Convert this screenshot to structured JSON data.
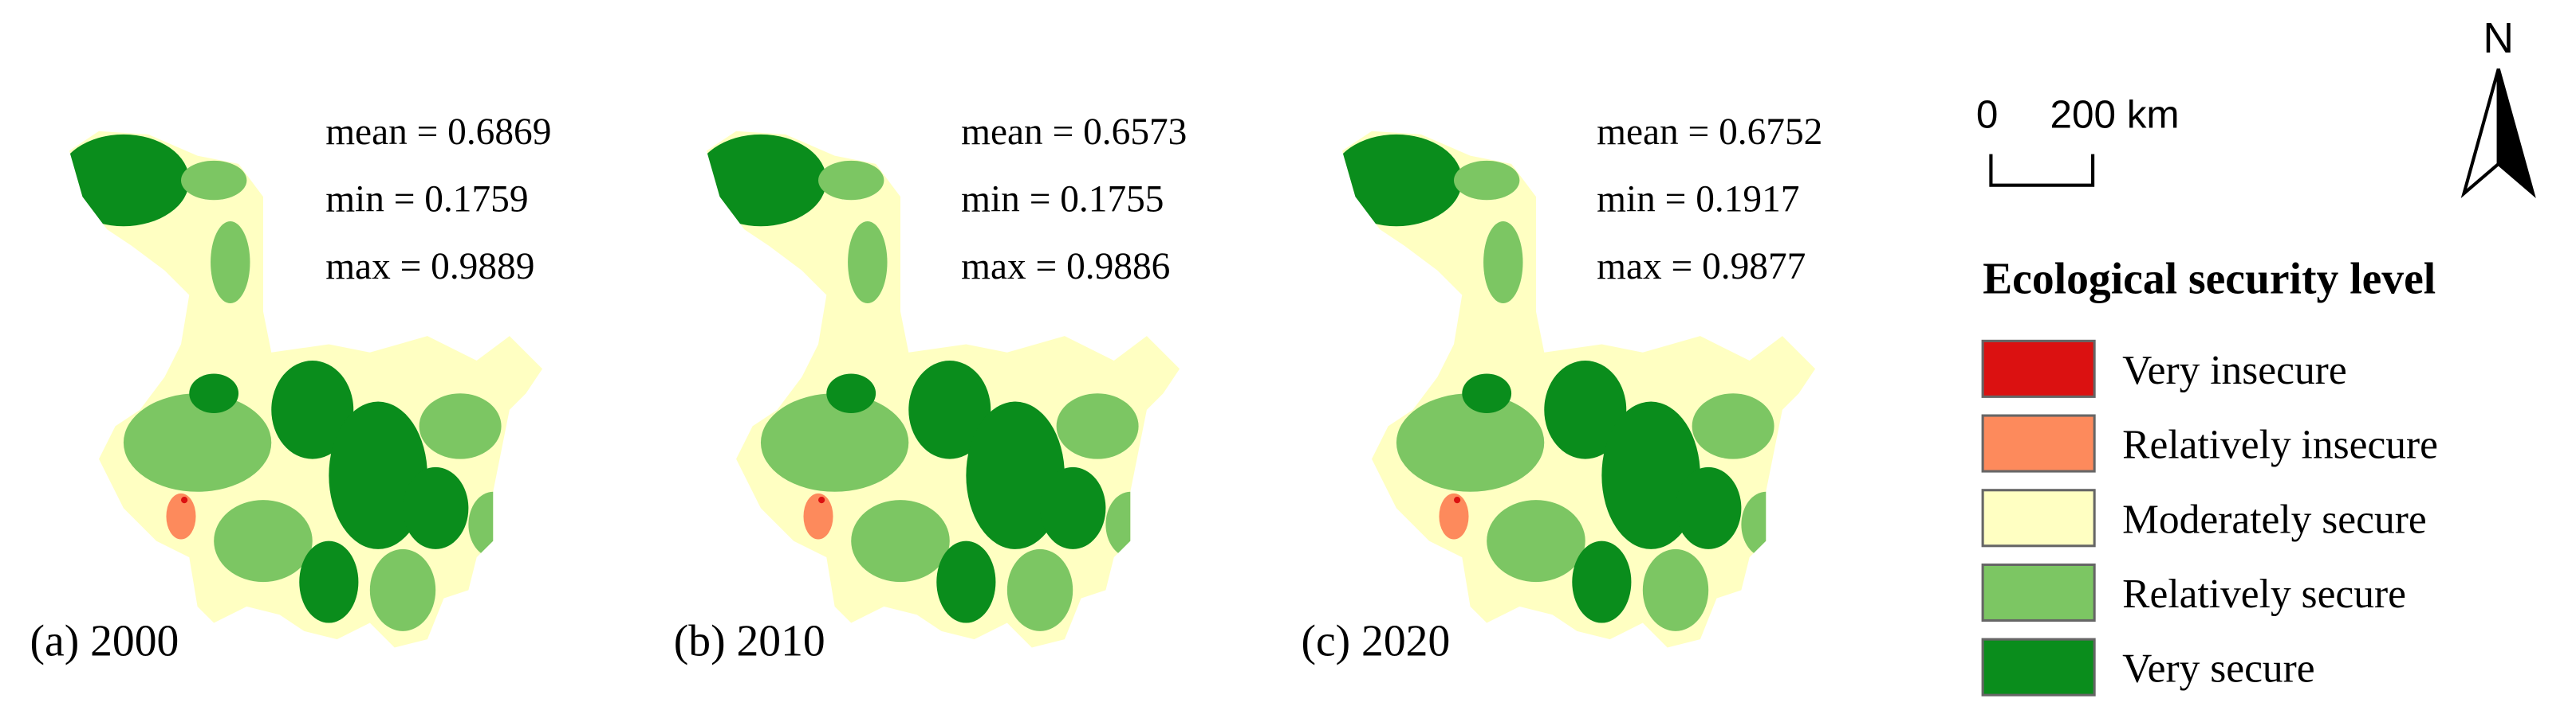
{
  "panels": [
    {
      "label": "(a) 2000",
      "stats": [
        "mean = 0.6869",
        "min = 0.1759",
        "max = 0.9889"
      ]
    },
    {
      "label": "(b) 2010",
      "stats": [
        "mean = 0.6573",
        "min = 0.1755",
        "max = 0.9886"
      ]
    },
    {
      "label": "(c) 2020",
      "stats": [
        "mean = 0.6752",
        "min = 0.1917",
        "max = 0.9877"
      ]
    }
  ],
  "scale_bar": {
    "start": "0",
    "end": "200 km"
  },
  "north": "N",
  "legend": {
    "title": "Ecological security level",
    "items": [
      {
        "label": "Very insecure",
        "color": "#db1111"
      },
      {
        "label": "Relatively insecure",
        "color": "#fd8a5c"
      },
      {
        "label": "Moderately secure",
        "color": "#ffffc2"
      },
      {
        "label": "Relatively secure",
        "color": "#7cc663"
      },
      {
        "label": "Very secure",
        "color": "#0a8d1c"
      }
    ]
  }
}
